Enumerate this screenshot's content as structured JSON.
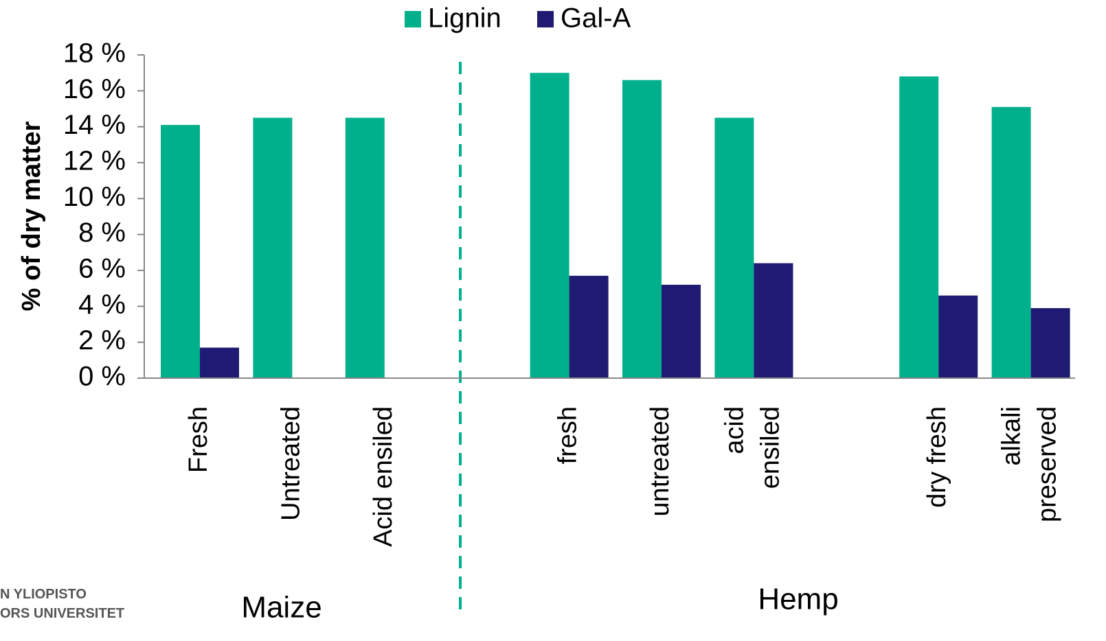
{
  "chart_data": {
    "type": "bar",
    "categories": [
      "Fresh",
      "Untreated",
      "Acid ensiled",
      null,
      "fresh",
      "untreated",
      "acid\nensiled",
      null,
      "dry fresh",
      "alkali\npreserved"
    ],
    "series": [
      {
        "name": "Lignin",
        "color": "#00b08c",
        "values": [
          14.1,
          14.5,
          14.5,
          null,
          17.0,
          16.6,
          14.5,
          null,
          16.8,
          15.1
        ]
      },
      {
        "name": "Gal-A",
        "color": "#1f1a72",
        "values": [
          1.7,
          null,
          null,
          null,
          5.7,
          5.2,
          6.4,
          null,
          4.6,
          3.9
        ]
      }
    ],
    "y_label": "% of dry matter",
    "annotations": [
      "Maize",
      "Hemp"
    ],
    "logo": [
      "N YLIOPISTO",
      "ORS UNIVERSITET"
    ],
    "ylim": [
      0,
      18
    ],
    "yticks": [
      {
        "value": 0,
        "label": "0 %"
      },
      {
        "value": 2,
        "label": "2 %"
      },
      {
        "value": 4,
        "label": "4 %"
      },
      {
        "value": 6,
        "label": "6 %"
      },
      {
        "value": 8,
        "label": "8 %"
      },
      {
        "value": 10,
        "label": "10 %"
      },
      {
        "value": 12,
        "label": "12 %"
      },
      {
        "value": 14,
        "label": "14 %"
      },
      {
        "value": 16,
        "label": "16 %"
      },
      {
        "value": 18,
        "label": "18 %"
      }
    ],
    "legend": "top"
  }
}
